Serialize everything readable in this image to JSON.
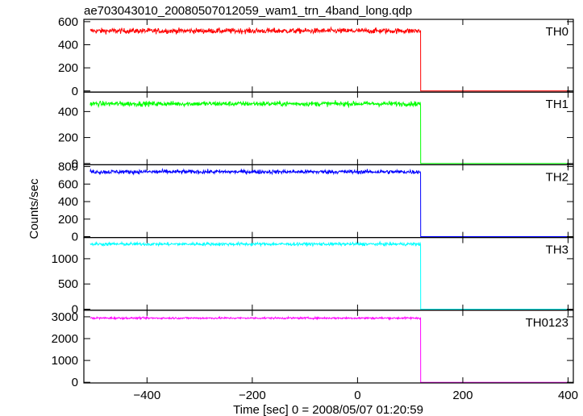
{
  "chart_data": {
    "type": "line",
    "title": "ae703043010_20080507012059_wam1_trn_4band_long.qdp",
    "xlabel": "Time [sec] 0 = 2008/05/07 01:20:59",
    "ylabel": "Counts/sec",
    "xlim": [
      -520,
      410
    ],
    "x_ticks": [
      -400,
      -200,
      0,
      200,
      400
    ],
    "x_tick_labels": [
      "−400",
      "−200",
      "0",
      "200",
      "400"
    ],
    "step_time": 120,
    "panels": [
      {
        "name": "TH0",
        "color": "#ff0000",
        "ylim": [
          -10,
          620
        ],
        "y_ticks": [
          0,
          200,
          400,
          600
        ],
        "y_tick_labels": [
          "0",
          "200",
          "400",
          "600"
        ],
        "level_before": 520,
        "noise": 22,
        "level_after": 0
      },
      {
        "name": "TH1",
        "color": "#00ff00",
        "ylim": [
          -10,
          550
        ],
        "y_ticks": [
          0,
          200,
          400
        ],
        "y_tick_labels": [
          "0",
          "200",
          "400"
        ],
        "level_before": 460,
        "noise": 18,
        "level_after": 0
      },
      {
        "name": "TH2",
        "color": "#0000ff",
        "ylim": [
          -10,
          820
        ],
        "y_ticks": [
          0,
          200,
          400,
          600,
          800
        ],
        "y_tick_labels": [
          "0",
          "200",
          "400",
          "600",
          "800"
        ],
        "level_before": 740,
        "noise": 22,
        "level_after": 0
      },
      {
        "name": "TH3",
        "color": "#00ffff",
        "ylim": [
          -20,
          1420
        ],
        "y_ticks": [
          0,
          500,
          1000
        ],
        "y_tick_labels": [
          "0",
          "500",
          "1000"
        ],
        "level_before": 1290,
        "noise": 30,
        "level_after": 0
      },
      {
        "name": "TH0123",
        "color": "#ff00ff",
        "ylim": [
          -30,
          3300
        ],
        "y_ticks": [
          0,
          1000,
          2000,
          3000
        ],
        "y_tick_labels": [
          "0",
          "1000",
          "2000",
          "3000"
        ],
        "level_before": 2940,
        "noise": 40,
        "level_after": 0
      }
    ]
  }
}
